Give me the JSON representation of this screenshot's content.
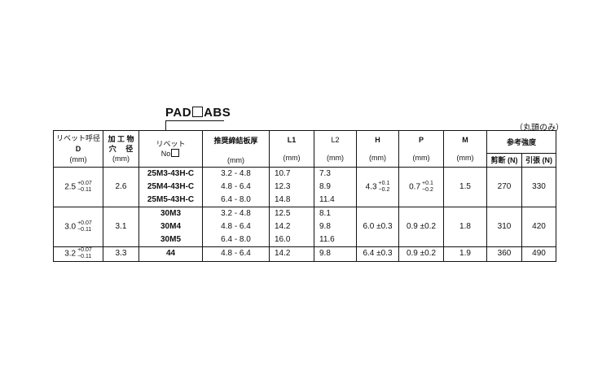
{
  "title": {
    "prefix": "PAD",
    "suffix": "ABS"
  },
  "note": "（丸頭のみ）",
  "headers": {
    "d": {
      "line1": "リベット呼径",
      "line2": "D",
      "unit": "(mm)"
    },
    "hole": {
      "line1": "加 工 物",
      "line2": "穴　 径",
      "unit": "(mm)"
    },
    "rivet": {
      "line1": "リベット",
      "line2": "No"
    },
    "plate": {
      "line1": "推奨締結板厚",
      "unit": "(mm)"
    },
    "l1": {
      "label": "L1",
      "unit": "(mm)"
    },
    "l2": {
      "label": "L2",
      "unit": "(mm)"
    },
    "h": {
      "label": "H",
      "unit": "(mm)"
    },
    "p": {
      "label": "P",
      "unit": "(mm)"
    },
    "m": {
      "label": "M",
      "unit": "(mm)"
    },
    "strength": {
      "label": "参考強度",
      "shear": "剪断 (N)",
      "tensile": "引張 (N)"
    }
  },
  "groups": [
    {
      "d": "2.5",
      "d_tol_plus": "+0.07",
      "d_tol_minus": "−0.11",
      "hole": "2.6",
      "rivets": [
        "25M3-43H-C",
        "25M4-43H-C",
        "25M5-43H-C"
      ],
      "plates": [
        "3.2 - 4.8",
        "4.8 - 6.4",
        "6.4 - 8.0"
      ],
      "l1": [
        "10.7",
        "12.3",
        "14.8"
      ],
      "l2": [
        "7.3",
        "8.9",
        "11.4"
      ],
      "h": "4.3",
      "h_tol_plus": "+0.1",
      "h_tol_minus": "−0.2",
      "p": "0.7",
      "p_tol_plus": "+0.1",
      "p_tol_minus": "−0.2",
      "m": "1.5",
      "shear": "270",
      "tensile": "330"
    },
    {
      "d": "3.0",
      "d_tol_plus": "+0.07",
      "d_tol_minus": "−0.11",
      "hole": "3.1",
      "rivets": [
        "30M3",
        "30M4",
        "30M5"
      ],
      "plates": [
        "3.2 - 4.8",
        "4.8 - 6.4",
        "6.4 - 8.0"
      ],
      "l1": [
        "12.5",
        "14.2",
        "16.0"
      ],
      "l2": [
        "8.1",
        "9.8",
        "11.6"
      ],
      "h": "6.0 ±0.3",
      "p": "0.9 ±0.2",
      "m": "1.8",
      "shear": "310",
      "tensile": "420"
    },
    {
      "d": "3.2",
      "d_tol_plus": "+0.07",
      "d_tol_minus": "−0.11",
      "hole": "3.3",
      "rivets": [
        "44"
      ],
      "plates": [
        "4.8 - 6.4"
      ],
      "l1": [
        "14.2"
      ],
      "l2": [
        "9.8"
      ],
      "h": "6.4 ±0.3",
      "p": "0.9 ±0.2",
      "m": "1.9",
      "shear": "360",
      "tensile": "490"
    }
  ]
}
